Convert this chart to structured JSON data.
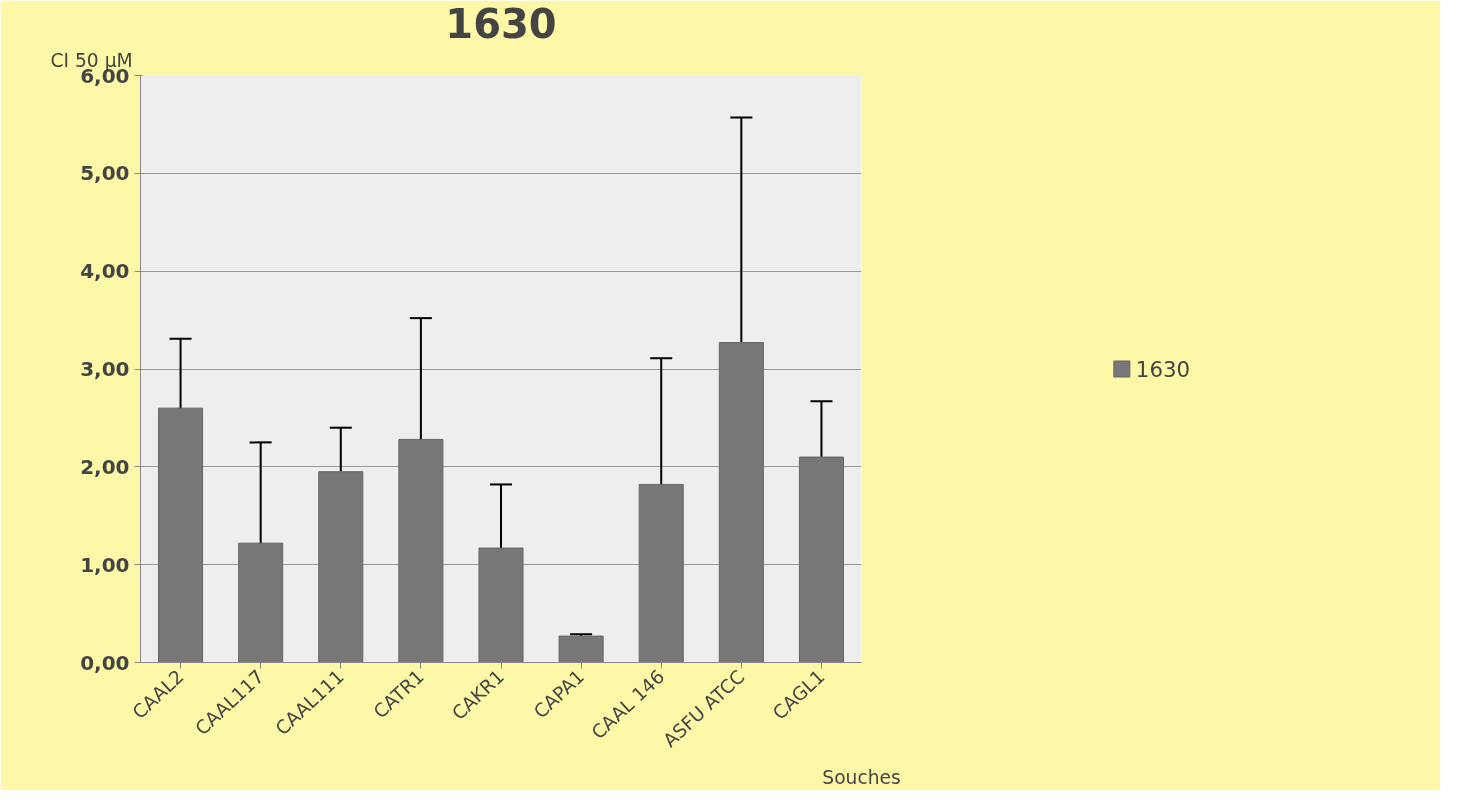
{
  "chart_data": {
    "type": "bar",
    "title": "1630",
    "ylabel": "CI 50  µM",
    "xlabel": "Souches",
    "categories": [
      "CAAL2",
      "CAAL117",
      "CAAL111",
      "CATR1",
      "CAKR1",
      "CAPA1",
      "CAAL 146",
      "ASFU ATCC",
      "CAGL1"
    ],
    "series": [
      {
        "name": "1630",
        "color": "#777777",
        "values": [
          2.6,
          1.22,
          1.95,
          2.28,
          1.17,
          0.27,
          1.82,
          3.27,
          2.1
        ],
        "errors": [
          0.71,
          1.03,
          0.45,
          1.24,
          0.65,
          0.02,
          1.29,
          2.3,
          0.57
        ]
      }
    ],
    "ylim": [
      0,
      6
    ],
    "yticks": [
      {
        "value": 0,
        "label": "0,00"
      },
      {
        "value": 1,
        "label": "1,00"
      },
      {
        "value": 2,
        "label": "2,00"
      },
      {
        "value": 3,
        "label": "3,00"
      },
      {
        "value": 4,
        "label": "4,00"
      },
      {
        "value": 5,
        "label": "5,00"
      },
      {
        "value": 6,
        "label": "6,00"
      }
    ],
    "grid": "y",
    "legend": "right"
  }
}
